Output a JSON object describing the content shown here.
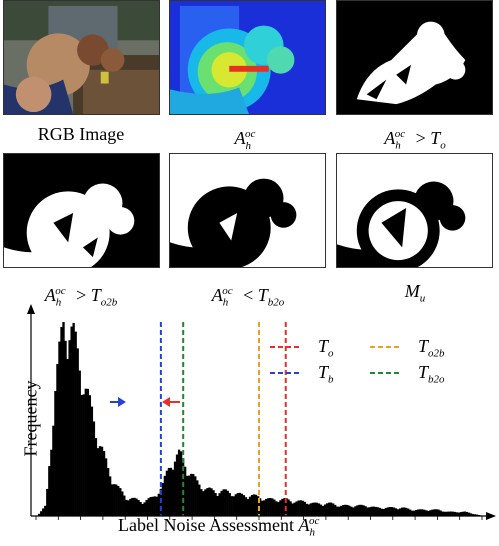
{
  "panels": [
    {
      "id": "rgb",
      "caption": "RGB Image"
    },
    {
      "id": "heat",
      "cap_base": "A",
      "cap_sup": "oc",
      "cap_sub": "h",
      "cap_rest": ""
    },
    {
      "id": "to",
      "cap_base": "A",
      "cap_sup": "oc",
      "cap_sub": "h",
      "cap_rel": " > ",
      "cap_t": "T",
      "cap_tsub": "o"
    },
    {
      "id": "to2b",
      "cap_base": "A",
      "cap_sup": "oc",
      "cap_sub": "h",
      "cap_rel": " > ",
      "cap_t": "T",
      "cap_tsub": "o2b"
    },
    {
      "id": "tb2o",
      "cap_base": "A",
      "cap_sup": "oc",
      "cap_sub": "h",
      "cap_rel": " < ",
      "cap_t": "T",
      "cap_tsub": "b2o"
    },
    {
      "id": "mu",
      "cap_base": "M",
      "cap_sub": "u"
    }
  ],
  "chart": {
    "ylabel": "Frequency",
    "xlabel_prefix": "Label Noise Assessment ",
    "xlabel_base": "A",
    "xlabel_sup": "oc",
    "xlabel_sub": "h",
    "legend": [
      {
        "base": "T",
        "sub": "o",
        "color": "#e8302a"
      },
      {
        "base": "T",
        "sub": "o2b",
        "color": "#f0a020"
      },
      {
        "base": "T",
        "sub": "b",
        "color": "#2a3fd6"
      },
      {
        "base": "T",
        "sub": "b2o",
        "color": "#1e8a2e"
      }
    ]
  },
  "chart_data": {
    "type": "bar",
    "title": "",
    "xlabel": "Label Noise Assessment A_h^oc",
    "ylabel": "Frequency",
    "x": [
      0.0,
      0.02,
      0.04,
      0.06,
      0.08,
      0.1,
      0.12,
      0.14,
      0.16,
      0.18,
      0.2,
      0.22,
      0.24,
      0.26,
      0.28,
      0.3,
      0.32,
      0.34,
      0.36,
      0.38,
      0.4,
      0.42,
      0.44,
      0.46,
      0.48,
      0.5,
      0.52,
      0.54,
      0.56,
      0.58,
      0.6,
      0.62,
      0.64,
      0.66,
      0.68,
      0.7,
      0.72,
      0.74,
      0.76,
      0.78,
      0.8,
      0.82,
      0.84,
      0.86,
      0.88,
      0.9,
      0.92,
      0.94,
      0.96,
      0.98,
      1.0
    ],
    "values": [
      0,
      5,
      60,
      95,
      88,
      70,
      52,
      36,
      22,
      14,
      9,
      8,
      7,
      9,
      14,
      26,
      30,
      22,
      16,
      13,
      12,
      12,
      11,
      10,
      10,
      9,
      8,
      8,
      8,
      7,
      7,
      6,
      6,
      6,
      5,
      5,
      5,
      5,
      4,
      4,
      4,
      4,
      3,
      3,
      3,
      3,
      2,
      2,
      2,
      1,
      0
    ],
    "thresholds": {
      "T_o": 0.56,
      "T_o2b": 0.5,
      "T_b": 0.28,
      "T_b2o": 0.33
    },
    "legend_placement": "top-right"
  }
}
